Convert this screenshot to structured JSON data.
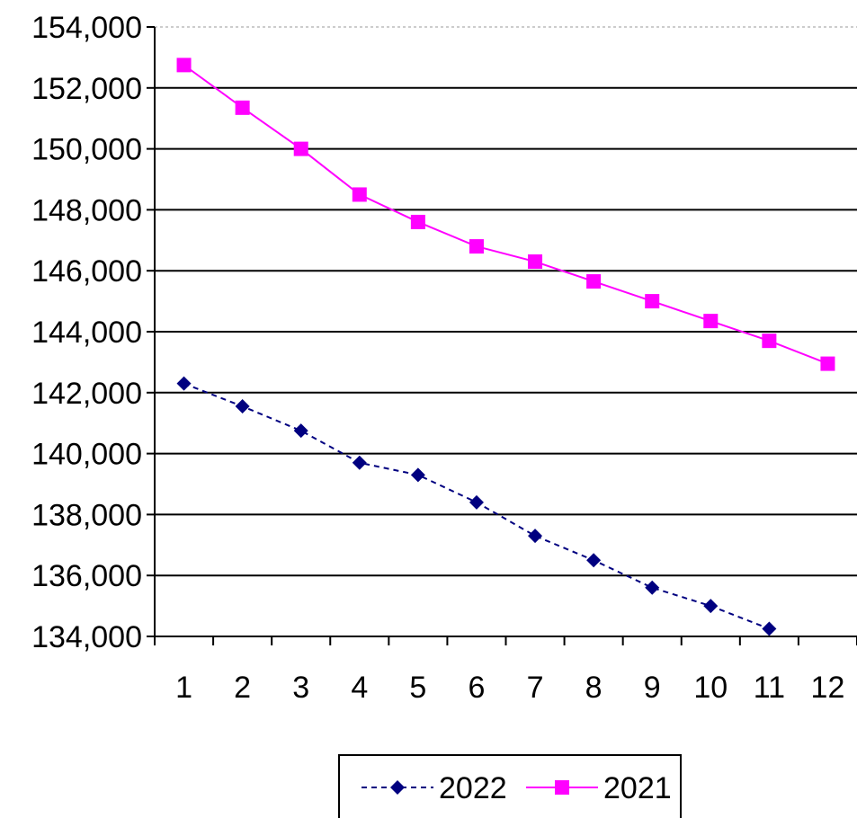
{
  "chart_data": {
    "type": "line",
    "title": "",
    "xlabel": "",
    "ylabel": "",
    "x": [
      1,
      2,
      3,
      4,
      5,
      6,
      7,
      8,
      9,
      10,
      11,
      12
    ],
    "ylim": [
      134000,
      154000
    ],
    "yticks": [
      154000,
      152000,
      150000,
      148000,
      146000,
      144000,
      142000,
      140000,
      138000,
      136000,
      134000
    ],
    "ytick_labels": [
      "154,000",
      "152,000",
      "150,000",
      "148,000",
      "146,000",
      "144,000",
      "142,000",
      "140,000",
      "138,000",
      "136,000",
      "134,000"
    ],
    "xtick_labels": [
      "1",
      "2",
      "3",
      "4",
      "5",
      "6",
      "7",
      "8",
      "9",
      "10",
      "11",
      "12"
    ],
    "grid": "horizontal",
    "legend_position": "bottom",
    "series": [
      {
        "name": "2022",
        "color": "#000080",
        "marker": "diamond",
        "line_style": "dashed",
        "values": [
          142300,
          141550,
          140750,
          139700,
          139300,
          138400,
          137300,
          136500,
          135600,
          135000,
          134250,
          null
        ]
      },
      {
        "name": "2021",
        "color": "#ff00ff",
        "marker": "square",
        "line_style": "solid",
        "values": [
          152750,
          151350,
          150000,
          148500,
          147600,
          146800,
          146300,
          145650,
          145000,
          144350,
          143700,
          142950
        ]
      }
    ]
  }
}
